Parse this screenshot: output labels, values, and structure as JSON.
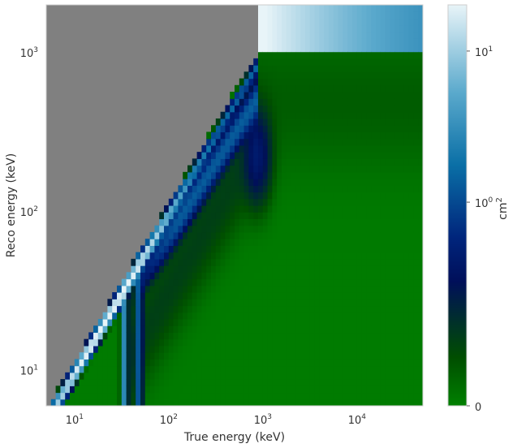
{
  "chart_data": {
    "type": "heatmap",
    "title": "",
    "xlabel": "True energy (keV)",
    "ylabel": "Reco energy (keV)",
    "x_scale": "log",
    "y_scale": "log",
    "xlim": [
      5,
      50000
    ],
    "ylim": [
      6,
      2000
    ],
    "x_ticks": [
      {
        "value": 10,
        "base": "10",
        "exp": "1"
      },
      {
        "value": 100,
        "base": "10",
        "exp": "2"
      },
      {
        "value": 1000,
        "base": "10",
        "exp": "3"
      },
      {
        "value": 10000,
        "base": "10",
        "exp": "4"
      }
    ],
    "y_ticks": [
      {
        "value": 10,
        "base": "10",
        "exp": "1"
      },
      {
        "value": 100,
        "base": "10",
        "exp": "2"
      },
      {
        "value": 1000,
        "base": "10",
        "exp": "3"
      }
    ],
    "colorbar": {
      "label_base": "cm",
      "label_exp": "2",
      "scale": "symlog",
      "range": [
        0,
        20
      ],
      "ticks": [
        {
          "value": 0,
          "text": "0",
          "base": "",
          "exp": ""
        },
        {
          "value": 1,
          "text": "",
          "base": "10",
          "exp": "0"
        },
        {
          "value": 10,
          "text": "",
          "base": "10",
          "exp": "1"
        }
      ],
      "colormap": [
        "#008000",
        "#004e00",
        "#000f5a",
        "#00257c",
        "#0a6fa6",
        "#5aa9cc",
        "#e8f4f8"
      ]
    },
    "masked_color": "#808080",
    "features": [
      {
        "name": "photopeak diagonal",
        "x_range": [
          5,
          900
        ],
        "peak_value": 20
      },
      {
        "name": "compton edge band",
        "x_range": [
          50,
          1000
        ],
        "peak_value": 1.5
      },
      {
        "name": "escape peak line 1",
        "x_range": [
          28,
          40
        ],
        "peak_value": 3
      },
      {
        "name": "escape peak line 2",
        "x_range": [
          40,
          60
        ],
        "peak_value": 1
      },
      {
        "name": "overflow row",
        "x_range": [
          900,
          50000
        ],
        "y_range": [
          1000,
          2000
        ],
        "peak_value": 8
      },
      {
        "name": "high energy continuum",
        "x_range": [
          1000,
          50000
        ],
        "peak_value": 0.05
      }
    ]
  }
}
